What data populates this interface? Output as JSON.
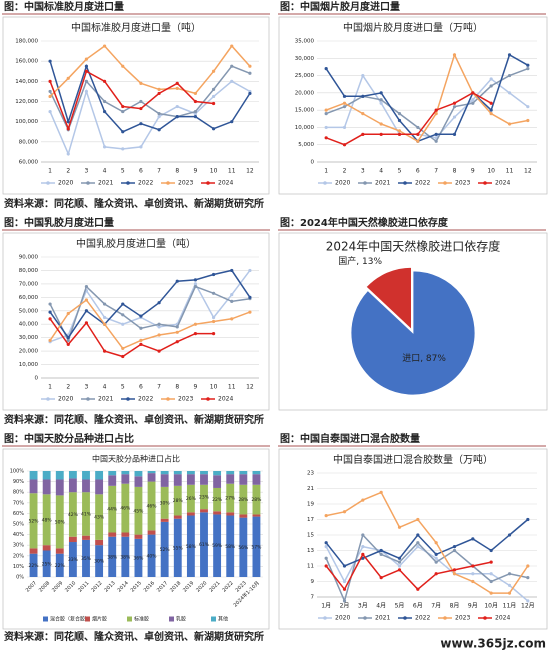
{
  "headers": [
    "图：中国标准胶月度进口量",
    "图：中国烟片胶月度进口量",
    "图：中国乳胶月度进口量",
    "图：2024年中国天然橡胶进口依存度",
    "图：中国天胶分品种进口占比",
    "图：中国自泰国进口混合胶数量"
  ],
  "source": "资料来源：同花顺、隆众资讯、卓创资讯、新湖期货研究所",
  "watermark": "www.365jz.com",
  "chart_data": [
    {
      "type": "line",
      "title": "中国标准胶月度进口量（吨）",
      "categories": [
        "1",
        "2",
        "3",
        "4",
        "5",
        "6",
        "7",
        "8",
        "9",
        "10",
        "11",
        "12"
      ],
      "ylim": [
        60000,
        180000
      ],
      "yticks": [
        {
          "value": 60000,
          "label": "60,000"
        },
        {
          "value": 80000,
          "label": "80,000"
        },
        {
          "value": 100000,
          "label": "100,000"
        },
        {
          "value": 120000,
          "label": "120,000"
        },
        {
          "value": 140000,
          "label": "140,000"
        },
        {
          "value": 160000,
          "label": "160,000"
        },
        {
          "value": 180000,
          "label": "180,000"
        }
      ],
      "grid": true,
      "series": [
        {
          "name": "2020",
          "color": "#b4c7e7",
          "values": [
            110000,
            68000,
            130000,
            75000,
            73000,
            75000,
            105000,
            115000,
            108000,
            125000,
            140000,
            130000
          ]
        },
        {
          "name": "2021",
          "color": "#8497b0",
          "values": [
            130000,
            92000,
            140000,
            120000,
            110000,
            120000,
            108000,
            105000,
            110000,
            132000,
            155000,
            148000
          ]
        },
        {
          "name": "2022",
          "color": "#2f5597",
          "values": [
            160000,
            100000,
            155000,
            110000,
            90000,
            98000,
            92000,
            105000,
            105000,
            93000,
            100000,
            128000
          ]
        },
        {
          "name": "2023",
          "color": "#f4a460",
          "values": [
            125000,
            143000,
            162000,
            175000,
            155000,
            138000,
            132000,
            133000,
            128000,
            150000,
            175000,
            155000
          ]
        },
        {
          "name": "2024",
          "color": "#e0201b",
          "values": [
            140000,
            93000,
            150000,
            140000,
            115000,
            113000,
            128000,
            138000,
            120000,
            118000,
            null,
            null
          ]
        }
      ]
    },
    {
      "type": "line",
      "title": "中国烟片胶月度进口量（万吨）",
      "categories": [
        "1",
        "2",
        "3",
        "4",
        "5",
        "6",
        "7",
        "8",
        "9",
        "10",
        "11",
        "12"
      ],
      "ylim": [
        0,
        35000
      ],
      "yticks": [
        0,
        {
          "value": 5000,
          "label": "5,000"
        },
        {
          "value": 10000,
          "label": "10,000"
        },
        {
          "value": 15000,
          "label": "15,000"
        },
        {
          "value": 20000,
          "label": "20,000"
        },
        {
          "value": 25000,
          "label": "25,000"
        },
        {
          "value": 30000,
          "label": "30,000"
        },
        {
          "value": 35000,
          "label": "35,000"
        }
      ],
      "grid": true,
      "series": [
        {
          "name": "2020",
          "color": "#b4c7e7",
          "values": [
            10000,
            10000,
            25000,
            17000,
            8000,
            8000,
            7000,
            13000,
            18000,
            24000,
            20000,
            16000
          ]
        },
        {
          "name": "2021",
          "color": "#8497b0",
          "values": [
            14000,
            16000,
            19000,
            18000,
            14000,
            10000,
            6000,
            16000,
            17000,
            22000,
            25000,
            27000
          ]
        },
        {
          "name": "2022",
          "color": "#2f5597",
          "values": [
            27000,
            19000,
            19000,
            20000,
            12000,
            6000,
            8000,
            8000,
            20000,
            15000,
            31000,
            28000
          ]
        },
        {
          "name": "2023",
          "color": "#f4a460",
          "values": [
            15000,
            17000,
            14000,
            11000,
            9000,
            6000,
            14000,
            31000,
            20000,
            14000,
            11000,
            12000
          ]
        },
        {
          "name": "2024",
          "color": "#e0201b",
          "values": [
            7000,
            5000,
            8000,
            8000,
            8000,
            8000,
            15000,
            17000,
            20000,
            17000,
            null,
            null
          ]
        }
      ]
    },
    {
      "type": "line",
      "title": "中国乳胶月度进口量（吨）",
      "categories": [
        "1",
        "2",
        "3",
        "4",
        "5",
        "6",
        "7",
        "8",
        "9",
        "10",
        "11",
        "12"
      ],
      "ylim": [
        0,
        90000
      ],
      "yticks": [
        0,
        {
          "value": 10000,
          "label": "10,000"
        },
        {
          "value": 20000,
          "label": "20,000"
        },
        {
          "value": 30000,
          "label": "30,000"
        },
        {
          "value": 40000,
          "label": "40,000"
        },
        {
          "value": 50000,
          "label": "50,000"
        },
        {
          "value": 60000,
          "label": "60,000"
        },
        {
          "value": 70000,
          "label": "70,000"
        },
        {
          "value": 80000,
          "label": "80,000"
        },
        {
          "value": 90000,
          "label": "90,000"
        }
      ],
      "grid": true,
      "series": [
        {
          "name": "2020",
          "color": "#b4c7e7",
          "values": [
            27000,
            32000,
            65000,
            45000,
            40000,
            45000,
            38000,
            40000,
            70000,
            45000,
            62000,
            80000
          ]
        },
        {
          "name": "2021",
          "color": "#8497b0",
          "values": [
            55000,
            28000,
            68000,
            55000,
            47000,
            37000,
            40000,
            38000,
            68000,
            63000,
            57000,
            59000
          ]
        },
        {
          "name": "2022",
          "color": "#2f5597",
          "values": [
            49000,
            30000,
            50000,
            40000,
            55000,
            46000,
            56000,
            72000,
            73000,
            77000,
            80000,
            60000
          ]
        },
        {
          "name": "2023",
          "color": "#f4a460",
          "values": [
            28000,
            48000,
            58000,
            40000,
            22000,
            28000,
            32000,
            34000,
            40000,
            42000,
            44000,
            49000
          ]
        },
        {
          "name": "2024",
          "color": "#e0201b",
          "values": [
            44000,
            25000,
            41000,
            20000,
            16000,
            25000,
            20000,
            27000,
            33000,
            33000,
            null,
            null
          ]
        }
      ]
    },
    {
      "type": "pie",
      "title": "2024年中国天然橡胶进口依存度",
      "values": [
        87,
        13
      ],
      "value_labels": [
        "进口, 87%",
        "国产, 13%"
      ],
      "colors": [
        "#4472c4",
        "#d0312d"
      ]
    },
    {
      "type": "stacked_bar",
      "title": "中国天胶分品种进口占比",
      "categories": [
        "2007",
        "2008",
        "2009",
        "2010",
        "2011",
        "2012",
        "2013",
        "2014",
        "2015",
        "2016",
        "2017",
        "2018",
        "2019",
        "2020",
        "2021",
        "2022",
        "2023",
        "2024年1-10月"
      ],
      "ylim": [
        0,
        100
      ],
      "yticks": [
        {
          "value": 0,
          "label": "0%"
        },
        {
          "value": 10,
          "label": "10%"
        },
        {
          "value": 20,
          "label": "20%"
        },
        {
          "value": 30,
          "label": "30%"
        },
        {
          "value": 40,
          "label": "40%"
        },
        {
          "value": 50,
          "label": "50%"
        },
        {
          "value": 60,
          "label": "60%"
        },
        {
          "value": 70,
          "label": "70%"
        },
        {
          "value": 80,
          "label": "80%"
        },
        {
          "value": 90,
          "label": "90%"
        },
        {
          "value": 100,
          "label": "100%"
        }
      ],
      "grid": true,
      "series": [
        {
          "name": "混合胶（复合胶）",
          "color": "#4472c4",
          "values": [
            22,
            25,
            22,
            33,
            35,
            30,
            38,
            38,
            36,
            40,
            52,
            55,
            58,
            61,
            59,
            58,
            56,
            57
          ],
          "value_labels": [
            "22%",
            "25%",
            "22%",
            "33%",
            "35%",
            "30%",
            "38%",
            "38%",
            "36%",
            "40%",
            "52%",
            "55%",
            "58%",
            "61%",
            "59%",
            "58%",
            "56%",
            "57%"
          ]
        },
        {
          "name": "烟片胶",
          "color": "#c0504d",
          "values": [
            5,
            5,
            5,
            5,
            4,
            5,
            4,
            4,
            4,
            4,
            3,
            3,
            3,
            3,
            3,
            3,
            3,
            2
          ]
        },
        {
          "name": "标准胶",
          "color": "#9bbb59",
          "values": [
            52,
            48,
            50,
            42,
            41,
            43,
            44,
            46,
            45,
            46,
            30,
            28,
            26,
            23,
            22,
            27,
            28,
            28
          ],
          "value_labels": [
            "52%",
            "48%",
            "50%",
            "42%",
            "41%",
            "43%",
            "44%",
            "46%",
            "45%",
            "46%",
            "30%",
            "28%",
            "26%",
            "23%",
            "22%",
            "27%",
            "28%",
            "28%"
          ]
        },
        {
          "name": "乳胶",
          "color": "#8064a2",
          "values": [
            13,
            14,
            15,
            13,
            12,
            14,
            10,
            9,
            10,
            8,
            12,
            11,
            10,
            10,
            12,
            9,
            10,
            10
          ]
        },
        {
          "name": "其他",
          "color": "#4bacc6",
          "values": [
            8,
            8,
            8,
            7,
            8,
            8,
            4,
            3,
            5,
            2,
            3,
            3,
            3,
            3,
            4,
            3,
            3,
            3
          ]
        }
      ]
    },
    {
      "type": "line",
      "title": "中国自泰国进口混合胶数量（万吨）",
      "categories": [
        "1月",
        "2月",
        "3月",
        "4月",
        "5月",
        "6月",
        "7月",
        "8月",
        "9月",
        "10月",
        "11月",
        "12月"
      ],
      "ylim": [
        7,
        23
      ],
      "yticks": [
        7,
        9,
        11,
        13,
        15,
        17,
        19,
        21,
        23
      ],
      "grid": true,
      "series": [
        {
          "name": "2020",
          "color": "#b4c7e7",
          "values": [
            13.5,
            9,
            13.5,
            13,
            11,
            13.5,
            12,
            10,
            10,
            10,
            8.5,
            6.5
          ]
        },
        {
          "name": "2021",
          "color": "#8497b0",
          "values": [
            12,
            6.5,
            15,
            12.5,
            11.5,
            14,
            11.5,
            13,
            11,
            9,
            10,
            9.5
          ]
        },
        {
          "name": "2022",
          "color": "#2f5597",
          "values": [
            14,
            11,
            12,
            13,
            12,
            15,
            12.5,
            13.5,
            14.5,
            13,
            15,
            17
          ]
        },
        {
          "name": "2023",
          "color": "#f4a460",
          "values": [
            17.5,
            18,
            19.5,
            20.5,
            16,
            17,
            14,
            10,
            9,
            7.5,
            7.5,
            11
          ]
        },
        {
          "name": "2024",
          "color": "#e0201b",
          "values": [
            11,
            8,
            12.5,
            9.5,
            10.5,
            8,
            10,
            10.5,
            11,
            11.5,
            null,
            null
          ]
        }
      ]
    }
  ]
}
